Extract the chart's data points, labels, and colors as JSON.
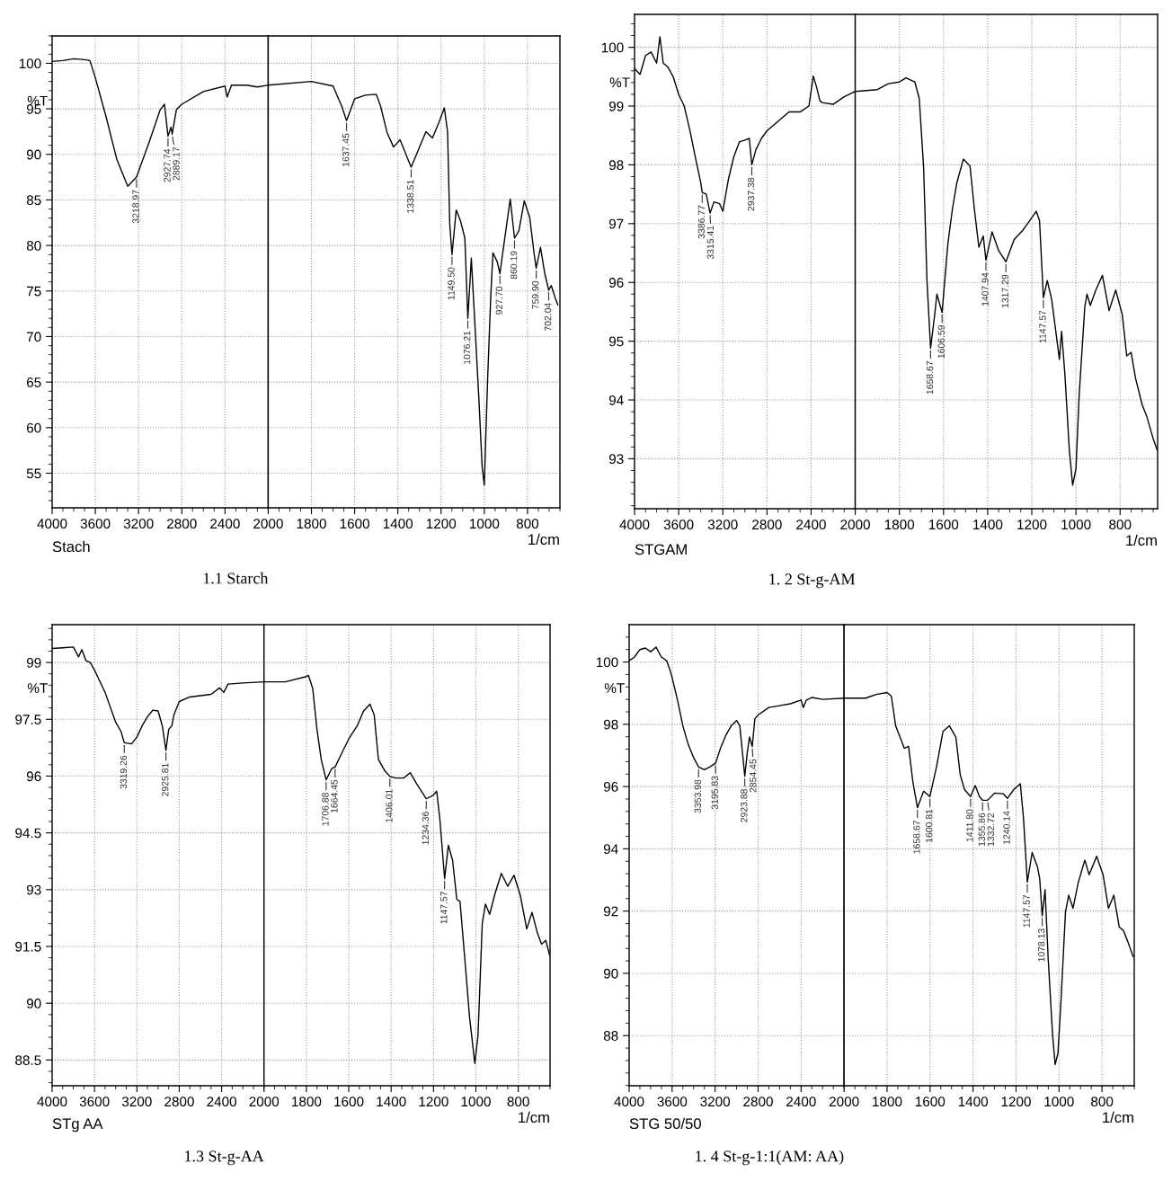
{
  "chart_data": [
    {
      "type": "line",
      "title": "1.1 Starch",
      "ylabel": "%T",
      "annotations": [
        "Stach",
        {
          "text": "3218.97",
          "x": 3218.97,
          "y": 87.5
        },
        {
          "text": "2927.74",
          "x": 2927.74,
          "y": 92
        },
        {
          "text": "2889.17",
          "x": 2889.17,
          "y": 92.2
        }
      ],
      "series": [
        {
          "color": "#000000",
          "x": [
            4000,
            3900,
            3800,
            3700,
            3650,
            3600,
            3500,
            3400,
            3300,
            3218.97,
            3100,
            3000,
            2960,
            2927.74,
            2900,
            2889.17,
            2850,
            2800,
            2600,
            2400,
            2380,
            2340,
            2200,
            2100,
            2000
          ],
          "values": [
            100.2,
            100.3,
            100.5,
            100.4,
            100.3,
            98.4,
            94.1,
            89.4,
            86.5,
            87.5,
            91.4,
            94.9,
            95.5,
            92,
            93,
            92.2,
            94.9,
            95.5,
            96.9,
            97.5,
            96.3,
            97.6,
            97.6,
            97.4,
            97.6
          ]
        }
      ],
      "xlim": [
        4000,
        2000
      ],
      "ylim": [
        51.2,
        103
      ],
      "xticks": [
        4000,
        3600,
        3200,
        2800,
        2400,
        2000
      ],
      "yticks": [
        55,
        60,
        65,
        70,
        75,
        80,
        85,
        90,
        95,
        100
      ],
      "grid": true
    },
    {
      "type": "line",
      "xlabel": "1/cm",
      "annotations": [
        {
          "text": "1637.45",
          "x": 1637.45,
          "y": 93.7
        },
        {
          "text": "1338.51",
          "x": 1338.51,
          "y": 88.6
        },
        {
          "text": "1149.50",
          "x": 1149.5,
          "y": 79
        },
        {
          "text": "1076.21",
          "x": 1076.21,
          "y": 72
        },
        {
          "text": "927.70",
          "x": 927.7,
          "y": 76.9
        },
        {
          "text": "860.19",
          "x": 860.19,
          "y": 80.8
        },
        {
          "text": "759.90",
          "x": 759.9,
          "y": 77.5
        },
        {
          "text": "702.04",
          "x": 702.04,
          "y": 75.1
        }
      ],
      "series": [
        {
          "color": "#000000",
          "x": [
            2000,
            1800,
            1700,
            1660,
            1637.45,
            1600,
            1550,
            1500,
            1480,
            1450,
            1420,
            1390,
            1338.51,
            1300,
            1270,
            1240,
            1210,
            1185,
            1170,
            1160,
            1149.5,
            1130,
            1110,
            1090,
            1076.21,
            1060,
            1040,
            1025,
            1010,
            1000,
            985,
            970,
            960,
            940,
            927.7,
            910,
            880,
            860.19,
            840,
            815,
            790,
            770,
            759.9,
            740,
            720,
            702.04,
            690,
            670,
            660
          ],
          "values": [
            97.6,
            98,
            97.5,
            95.3,
            93.7,
            96.1,
            96.5,
            96.6,
            95.3,
            92.4,
            90.8,
            91.6,
            88.6,
            90.8,
            92.5,
            91.8,
            93.5,
            95.1,
            92.5,
            82.4,
            79,
            83.9,
            82.7,
            80.8,
            72,
            78.6,
            69.8,
            63.1,
            55.7,
            53.7,
            65.1,
            74.5,
            79.2,
            78.2,
            76.9,
            80,
            85.1,
            80.8,
            81.6,
            84.9,
            83.1,
            79.2,
            77.5,
            79.8,
            76.9,
            75.1,
            75.6,
            74.1,
            73.5
          ]
        }
      ],
      "xlim": [
        2000,
        650
      ],
      "ylim": [
        51.2,
        103
      ],
      "xticks": [
        1800,
        1600,
        1400,
        1200,
        1000,
        800
      ],
      "yticks": [
        55,
        60,
        65,
        70,
        75,
        80,
        85,
        90,
        95,
        100
      ],
      "grid": true,
      "tick_labels": "x"
    },
    {
      "type": "line",
      "title": "1. 2 St-g-AM",
      "ylabel": "%T",
      "annotations": [
        "STGAM",
        {
          "text": "3386.77",
          "x": 3386.77,
          "y": 97.53
        },
        {
          "text": "3315.41",
          "x": 3315.41,
          "y": 97.18
        },
        {
          "text": "2937.38",
          "x": 2937.38,
          "y": 98.0
        }
      ],
      "series": [
        {
          "color": "#000000",
          "x": [
            4000,
            3950,
            3900,
            3850,
            3800,
            3770,
            3740,
            3700,
            3650,
            3600,
            3550,
            3500,
            3450,
            3400,
            3386.77,
            3350,
            3315.41,
            3280,
            3230,
            3200,
            3150,
            3100,
            3050,
            3000,
            2960,
            2937.38,
            2900,
            2850,
            2800,
            2700,
            2600,
            2500,
            2420,
            2380,
            2350,
            2320,
            2300,
            2200,
            2100,
            2000
          ],
          "values": [
            99.64,
            99.54,
            99.86,
            99.92,
            99.73,
            100.18,
            99.73,
            99.67,
            99.5,
            99.2,
            99.0,
            98.6,
            98.14,
            97.7,
            97.53,
            97.5,
            97.18,
            97.37,
            97.34,
            97.21,
            97.75,
            98.14,
            98.39,
            98.42,
            98.45,
            98.0,
            98.26,
            98.45,
            98.58,
            98.74,
            98.9,
            98.9,
            99.0,
            99.51,
            99.32,
            99.09,
            99.06,
            99.03,
            99.16,
            99.25
          ]
        }
      ],
      "xlim": [
        4000,
        2000
      ],
      "ylim": [
        92.15,
        100.56
      ],
      "xticks": [
        4000,
        3600,
        3200,
        2800,
        2400,
        2000
      ],
      "yticks": [
        93,
        94,
        95,
        96,
        97,
        98,
        99,
        100
      ],
      "grid": true
    },
    {
      "type": "line",
      "xlabel": "1/cm",
      "annotations": [
        {
          "text": "1658.67",
          "x": 1658.67,
          "y": 94.88
        },
        {
          "text": "1606.59",
          "x": 1606.59,
          "y": 95.49
        },
        {
          "text": "1407.94",
          "x": 1407.94,
          "y": 96.38
        },
        {
          "text": "1317.29",
          "x": 1317.29,
          "y": 96.35
        },
        {
          "text": "1147.57",
          "x": 1147.57,
          "y": 95.74
        }
      ],
      "series": [
        {
          "color": "#000000",
          "x": [
            2000,
            1900,
            1850,
            1800,
            1770,
            1730,
            1710,
            1690,
            1675,
            1658.67,
            1640,
            1630,
            1606.59,
            1580,
            1560,
            1540,
            1510,
            1480,
            1460,
            1440,
            1420,
            1407.94,
            1380,
            1350,
            1317.29,
            1280,
            1240,
            1210,
            1180,
            1165,
            1147.57,
            1130,
            1110,
            1090,
            1075,
            1065,
            1050,
            1030,
            1015,
            1000,
            985,
            960,
            950,
            935,
            910,
            880,
            850,
            820,
            790,
            770,
            750,
            730,
            700,
            680,
            650,
            632
          ],
          "values": [
            99.25,
            99.28,
            99.38,
            99.41,
            99.48,
            99.41,
            99.13,
            97.94,
            96.03,
            94.88,
            95.45,
            95.8,
            95.49,
            96.67,
            97.24,
            97.69,
            98.1,
            97.98,
            97.24,
            96.6,
            96.79,
            96.38,
            96.86,
            96.54,
            96.35,
            96.73,
            96.89,
            97.05,
            97.21,
            97.05,
            95.74,
            96.03,
            95.71,
            95.13,
            94.69,
            95.17,
            94.43,
            93.15,
            92.55,
            92.83,
            94.11,
            95.58,
            95.8,
            95.61,
            95.87,
            96.12,
            95.52,
            95.87,
            95.45,
            94.75,
            94.81,
            94.37,
            93.92,
            93.73,
            93.34,
            93.15
          ]
        }
      ],
      "xlim": [
        2000,
        630
      ],
      "ylim": [
        92.15,
        100.56
      ],
      "xticks": [
        1800,
        1600,
        1400,
        1200,
        1000,
        800
      ],
      "yticks": [
        93,
        94,
        95,
        96,
        97,
        98,
        99,
        100
      ],
      "grid": true,
      "tick_labels": "x"
    },
    {
      "type": "line",
      "title": "1.3 St-g-AA",
      "ylabel": "%T",
      "annotations": [
        "STg AA",
        {
          "text": "3319.26",
          "x": 3319.26,
          "y": 96.88
        },
        {
          "text": "2925.81",
          "x": 2925.81,
          "y": 96.68
        }
      ],
      "series": [
        {
          "color": "#000000",
          "x": [
            4000,
            3900,
            3800,
            3750,
            3720,
            3680,
            3640,
            3600,
            3500,
            3400,
            3350,
            3319.26,
            3250,
            3200,
            3150,
            3100,
            3050,
            3000,
            2960,
            2925.81,
            2900,
            2870,
            2850,
            2800,
            2700,
            2500,
            2420,
            2380,
            2340,
            2200,
            2000
          ],
          "values": [
            99.37,
            99.39,
            99.41,
            99.15,
            99.34,
            99.05,
            99.0,
            98.8,
            98.21,
            97.42,
            97.18,
            96.88,
            96.85,
            97.03,
            97.33,
            97.57,
            97.74,
            97.72,
            97.33,
            96.68,
            97.23,
            97.33,
            97.62,
            97.97,
            98.09,
            98.16,
            98.33,
            98.21,
            98.43,
            98.46,
            98.49
          ]
        }
      ],
      "xlim": [
        4000,
        2000
      ],
      "ylim": [
        87.82,
        100
      ],
      "xticks": [
        4000,
        3600,
        3200,
        2800,
        2400,
        2000
      ],
      "yticks": [
        88.5,
        90,
        91.5,
        93,
        94.5,
        96,
        97.5,
        99
      ],
      "grid": true
    },
    {
      "type": "line",
      "xlabel": "1/cm",
      "annotations": [
        {
          "text": "1706.88",
          "x": 1706.88,
          "y": 95.9
        },
        {
          "text": "1664.45",
          "x": 1664.45,
          "y": 96.24
        },
        {
          "text": "1406.01",
          "x": 1406.01,
          "y": 95.99
        },
        {
          "text": "1234.36",
          "x": 1234.36,
          "y": 95.4
        },
        {
          "text": "1147.57",
          "x": 1147.57,
          "y": 93.29
        }
      ],
      "series": [
        {
          "color": "#000000",
          "x": [
            2000,
            1900,
            1800,
            1790,
            1770,
            1750,
            1730,
            1706.88,
            1680,
            1664.45,
            1630,
            1600,
            1560,
            1530,
            1500,
            1480,
            1460,
            1430,
            1406.01,
            1380,
            1340,
            1310,
            1280,
            1234.36,
            1200,
            1185,
            1170,
            1147.57,
            1130,
            1110,
            1090,
            1075,
            1050,
            1030,
            1005,
            990,
            970,
            955,
            935,
            910,
            880,
            850,
            820,
            790,
            760,
            735,
            710,
            690,
            670,
            652
          ],
          "values": [
            98.49,
            98.49,
            98.63,
            98.66,
            98.31,
            97.23,
            96.44,
            95.9,
            96.2,
            96.24,
            96.64,
            96.98,
            97.33,
            97.72,
            97.9,
            97.62,
            96.44,
            96.14,
            95.99,
            95.95,
            95.95,
            96.09,
            95.8,
            95.4,
            95.5,
            95.6,
            94.86,
            93.29,
            94.17,
            93.78,
            92.74,
            92.69,
            91.02,
            89.64,
            88.41,
            89.15,
            92.1,
            92.62,
            92.35,
            92.89,
            93.43,
            93.09,
            93.38,
            92.84,
            91.96,
            92.4,
            91.86,
            91.56,
            91.66,
            91.27
          ]
        }
      ],
      "xlim": [
        2000,
        650
      ],
      "ylim": [
        87.82,
        100
      ],
      "xticks": [
        1800,
        1600,
        1400,
        1200,
        1000,
        800
      ],
      "yticks": [
        88.5,
        90,
        91.5,
        93,
        94.5,
        96,
        97.5,
        99
      ],
      "grid": true,
      "tick_labels": "x"
    },
    {
      "type": "line",
      "title": "1. 4 St-g-1:1(AM: AA)",
      "ylabel": "%T",
      "annotations": [
        "STG 50/50",
        {
          "text": "3353.98",
          "x": 3353.98,
          "y": 96.63
        },
        {
          "text": "3195.83",
          "x": 3195.83,
          "y": 96.75
        },
        {
          "text": "2923.88",
          "x": 2923.88,
          "y": 96.33
        },
        {
          "text": "2854.45",
          "x": 2854.45,
          "y": 97.29
        }
      ],
      "series": [
        {
          "color": "#000000",
          "x": [
            4000,
            3950,
            3900,
            3850,
            3800,
            3750,
            3700,
            3650,
            3620,
            3600,
            3550,
            3500,
            3450,
            3400,
            3353.98,
            3300,
            3250,
            3195.83,
            3150,
            3100,
            3050,
            3000,
            2970,
            2950,
            2923.88,
            2900,
            2880,
            2854.45,
            2830,
            2800,
            2700,
            2600,
            2500,
            2400,
            2380,
            2350,
            2300,
            2200,
            2000
          ],
          "values": [
            100.04,
            100.16,
            100.4,
            100.45,
            100.33,
            100.48,
            100.16,
            100.04,
            99.74,
            99.5,
            98.78,
            97.95,
            97.35,
            96.93,
            96.63,
            96.54,
            96.63,
            96.75,
            97.23,
            97.65,
            97.95,
            98.12,
            97.95,
            97.23,
            96.33,
            97.11,
            97.59,
            97.29,
            98.18,
            98.3,
            98.54,
            98.6,
            98.66,
            98.78,
            98.54,
            98.78,
            98.86,
            98.8,
            98.84
          ]
        }
      ],
      "xlim": [
        4000,
        2000
      ],
      "ylim": [
        86.39,
        101.2
      ],
      "xticks": [
        4000,
        3600,
        3200,
        2800,
        2400,
        2000
      ],
      "yticks": [
        88,
        90,
        92,
        94,
        96,
        98,
        100
      ],
      "grid": true
    },
    {
      "type": "line",
      "xlabel": "1/cm",
      "annotations": [
        {
          "text": "1658.67",
          "x": 1658.67,
          "y": 95.32
        },
        {
          "text": "1600.81",
          "x": 1600.81,
          "y": 95.68
        },
        {
          "text": "1411.80",
          "x": 1411.8,
          "y": 95.68
        },
        {
          "text": "1355.86",
          "x": 1355.86,
          "y": 95.56
        },
        {
          "text": "1332.72",
          "x": 1332.72,
          "y": 95.56
        },
        {
          "text": "1240.14",
          "x": 1240.14,
          "y": 95.62
        },
        {
          "text": "1147.57",
          "x": 1147.57,
          "y": 92.93
        },
        {
          "text": "1078.13",
          "x": 1078.13,
          "y": 91.85
        }
      ],
      "series": [
        {
          "color": "#000000",
          "x": [
            2000,
            1900,
            1850,
            1800,
            1780,
            1760,
            1740,
            1720,
            1700,
            1680,
            1658.67,
            1630,
            1600.81,
            1570,
            1540,
            1510,
            1480,
            1460,
            1440,
            1411.8,
            1390,
            1370,
            1355.86,
            1332.72,
            1300,
            1260,
            1240.14,
            1210,
            1180,
            1165,
            1147.57,
            1125,
            1100,
            1090,
            1078.13,
            1065,
            1050,
            1030,
            1018,
            1005,
            990,
            970,
            955,
            935,
            910,
            880,
            860,
            825,
            795,
            770,
            745,
            720,
            700,
            680,
            655
          ],
          "values": [
            98.84,
            98.84,
            98.96,
            99.02,
            98.9,
            97.95,
            97.59,
            97.23,
            97.29,
            96.15,
            95.32,
            95.85,
            95.68,
            96.63,
            97.77,
            97.95,
            97.59,
            96.39,
            95.91,
            95.68,
            96.03,
            95.68,
            95.56,
            95.56,
            95.79,
            95.77,
            95.62,
            95.91,
            96.09,
            94.96,
            92.93,
            93.88,
            93.41,
            93.05,
            91.85,
            92.69,
            90.42,
            88.03,
            87.07,
            87.43,
            89.22,
            91.97,
            92.51,
            92.09,
            92.93,
            93.64,
            93.17,
            93.76,
            93.17,
            92.09,
            92.51,
            91.49,
            91.37,
            91.02,
            90.54
          ]
        }
      ],
      "xlim": [
        2000,
        650
      ],
      "ylim": [
        86.39,
        101.2
      ],
      "xticks": [
        1800,
        1600,
        1400,
        1200,
        1000,
        800
      ],
      "yticks": [
        88,
        90,
        92,
        94,
        96,
        98,
        100
      ],
      "grid": true,
      "tick_labels": "x"
    }
  ]
}
